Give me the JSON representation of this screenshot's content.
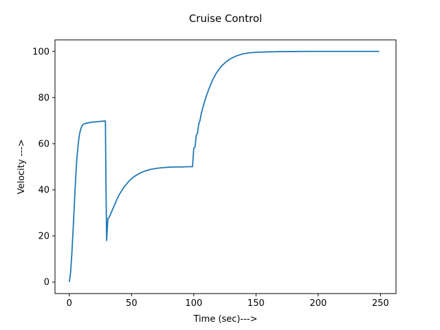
{
  "chart_data": {
    "type": "line",
    "title": "Cruise Control",
    "xlabel": "Time (sec)--->",
    "ylabel": "Velocity --->",
    "xlim": [
      -11.5,
      262.5
    ],
    "ylim": [
      -5,
      105
    ],
    "xticks": [
      0,
      50,
      100,
      150,
      200,
      250
    ],
    "yticks": [
      0,
      20,
      40,
      60,
      80,
      100
    ],
    "grid": false,
    "legend": "none",
    "series": [
      {
        "color": "#1f77b4",
        "x": [
          0,
          1,
          2,
          3,
          4,
          5,
          6,
          7,
          8,
          9,
          10,
          11,
          12,
          14,
          16,
          18,
          20,
          22,
          24,
          26,
          28,
          29,
          29.5,
          30,
          31,
          32,
          34,
          36,
          38,
          40,
          44,
          48,
          52,
          56,
          60,
          65,
          70,
          75,
          80,
          85,
          90,
          95,
          99,
          100,
          101,
          102,
          103,
          104,
          105,
          106,
          108,
          110,
          112,
          115,
          118,
          122,
          126,
          130,
          135,
          140,
          145,
          150,
          160,
          170,
          180,
          190,
          200,
          210,
          220,
          230,
          240,
          249
        ],
        "y": [
          0,
          4,
          12,
          22,
          33,
          44,
          53,
          59,
          63.5,
          66,
          67.5,
          68.3,
          68.6,
          68.9,
          69.1,
          69.3,
          69.4,
          69.5,
          69.6,
          69.7,
          69.8,
          69.8,
          40,
          18,
          27.5,
          28,
          30.5,
          33,
          35.5,
          37.8,
          41.2,
          43.8,
          45.7,
          47,
          48,
          48.8,
          49.3,
          49.6,
          49.8,
          49.9,
          49.9,
          50,
          50,
          58,
          58.5,
          63.5,
          64.5,
          68.5,
          70,
          73,
          77,
          80.5,
          83.5,
          87.5,
          90.5,
          93.5,
          95.5,
          97,
          98.2,
          99,
          99.4,
          99.6,
          99.8,
          99.9,
          99.95,
          100,
          100,
          100,
          100,
          100,
          100,
          100
        ]
      }
    ]
  }
}
